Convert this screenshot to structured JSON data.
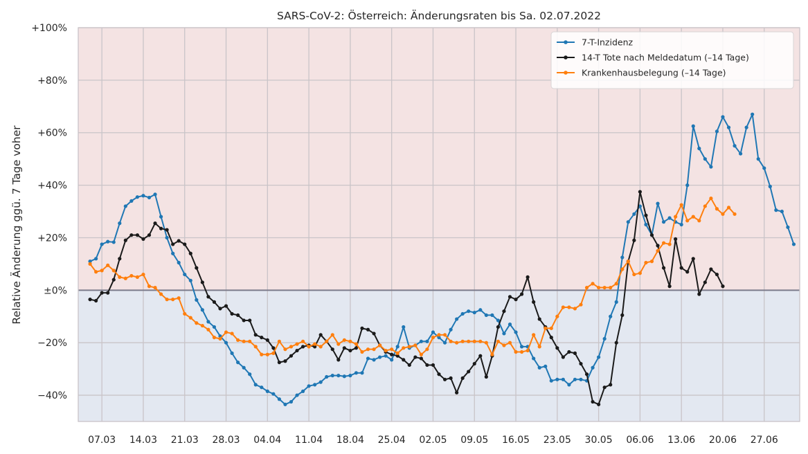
{
  "chart_data": {
    "type": "line",
    "title": "SARS-CoV-2: Österreich: Änderungsraten bis Sa. 02.07.2022",
    "xlabel": "",
    "ylabel": "Relative Änderung ggü. 7 Tage voher",
    "ylim": [
      -50,
      100
    ],
    "x_range": [
      "2022-03-03",
      "2022-07-03"
    ],
    "x_tick_labels": [
      "07.03",
      "14.03",
      "21.03",
      "28.03",
      "04.04",
      "11.04",
      "18.04",
      "25.04",
      "02.05",
      "09.05",
      "16.05",
      "23.05",
      "30.05",
      "06.06",
      "13.06",
      "20.06",
      "27.06"
    ],
    "y_ticks": [
      -40,
      -20,
      0,
      20,
      40,
      60,
      80,
      100
    ],
    "y_tick_labels": [
      "−40%",
      "−20%",
      "±0%",
      "+20%",
      "+40%",
      "+60%",
      "+80%",
      "+100%"
    ],
    "grid": true,
    "background_positive": "#f4e3e3",
    "background_negative": "#e3e8f1",
    "zero_line_color": "#7a7a8a",
    "legend_position": "top-right",
    "series": [
      {
        "name": "7-T-Inzidenz",
        "color": "#1f77b4",
        "start_date": "2022-03-05",
        "values": [
          11,
          12,
          17.5,
          18.5,
          18.3,
          25.5,
          32,
          34,
          35.5,
          36,
          35.3,
          36.5,
          28,
          20,
          14,
          10.5,
          6,
          3.7,
          -3.7,
          -7.5,
          -12,
          -14,
          -17.5,
          -20,
          -24,
          -27.5,
          -29.5,
          -32,
          -36,
          -37,
          -38.5,
          -39.5,
          -41.5,
          -43.5,
          -42.5,
          -40,
          -38.5,
          -36.5,
          -36,
          -35,
          -33,
          -32.5,
          -32.5,
          -32.8,
          -32.5,
          -31.5,
          -31.5,
          -26,
          -26.5,
          -25.5,
          -25,
          -26.5,
          -21.5,
          -14,
          -22,
          -21,
          -19.5,
          -19.5,
          -16,
          -18,
          -20,
          -15,
          -11,
          -9,
          -8,
          -8.5,
          -7.5,
          -9.5,
          -9.5,
          -11.5,
          -16.5,
          -13,
          -16,
          -21.5,
          -21.5,
          -26,
          -29.5,
          -29,
          -34.5,
          -34,
          -34,
          -36,
          -34,
          -34,
          -34.5,
          -29.5,
          -25.5,
          -18.5,
          -10,
          -4.5,
          12.5,
          26,
          29,
          32,
          25,
          21,
          33,
          26,
          27.5,
          26,
          25,
          40,
          62.5,
          54,
          50,
          47,
          60.5,
          66,
          62,
          55,
          52,
          62,
          67,
          50,
          46.5,
          39.5,
          30.5,
          30,
          24,
          17.5
        ]
      },
      {
        "name": "14-T Tote nach Meldedatum (–14 Tage)",
        "color": "#1a1a1a",
        "start_date": "2022-03-05",
        "values": [
          -3.5,
          -4,
          -1,
          -1,
          4,
          12,
          19,
          21,
          21,
          19.5,
          21,
          25.5,
          23.5,
          23,
          17.5,
          18.8,
          17.5,
          14,
          8.5,
          3,
          -2.5,
          -4.5,
          -7,
          -6,
          -9,
          -9.5,
          -11.5,
          -11.5,
          -17,
          -18,
          -19,
          -22,
          -27.5,
          -27,
          -25,
          -23,
          -21.5,
          -21,
          -21.5,
          -17,
          -19.5,
          -22.5,
          -26.5,
          -22,
          -23,
          -22,
          -14.5,
          -15,
          -16.5,
          -21,
          -23.5,
          -24.5,
          -25,
          -26.5,
          -28.5,
          -25.5,
          -26,
          -28.5,
          -28.5,
          -32,
          -34,
          -33.5,
          -39,
          -33.5,
          -31,
          -28,
          -25,
          -33,
          -25,
          -14,
          -8,
          -2.5,
          -3.5,
          -1.5,
          5,
          -4.5,
          -11,
          -14,
          -18,
          -22,
          -25.5,
          -23.5,
          -24,
          -28,
          -32,
          -42.5,
          -43.5,
          -37,
          -36,
          -20,
          -9.5,
          11,
          19,
          37.5,
          28.5,
          21,
          17,
          8.5,
          1.5,
          19.5,
          8.5,
          7,
          12,
          -1.5,
          3,
          8,
          6,
          1.5
        ]
      },
      {
        "name": "Krankenhausbelegung (–14 Tage)",
        "color": "#ff7f0e",
        "start_date": "2022-03-05",
        "values": [
          10,
          7,
          7.5,
          9.5,
          7.5,
          5,
          4.5,
          5.5,
          5,
          6,
          1.5,
          1,
          -1.5,
          -3.5,
          -3.5,
          -3,
          -9,
          -10.5,
          -12.5,
          -13.5,
          -15,
          -18,
          -18.5,
          -16,
          -16.5,
          -19,
          -19.5,
          -19.5,
          -21.5,
          -24.5,
          -24.5,
          -24,
          -19.5,
          -22.5,
          -21.5,
          -20.5,
          -19.5,
          -21.5,
          -20.5,
          -21.5,
          -19.5,
          -17,
          -20.5,
          -19,
          -19.5,
          -20.5,
          -23.5,
          -22.5,
          -22.5,
          -21,
          -23,
          -22.5,
          -24,
          -22,
          -21.5,
          -21,
          -24.5,
          -22.5,
          -18,
          -17,
          -17,
          -19.5,
          -20,
          -19.5,
          -19.5,
          -19.5,
          -19.5,
          -20,
          -24.5,
          -19.5,
          -21,
          -20,
          -23.5,
          -23.5,
          -23,
          -17,
          -21.5,
          -14.5,
          -14.5,
          -10,
          -6.5,
          -6.5,
          -7,
          -5.5,
          1,
          2.5,
          1,
          1,
          1,
          2.5,
          8,
          11,
          6,
          6.5,
          10.5,
          11,
          15,
          18,
          17.5,
          28,
          32.5,
          26.5,
          28,
          26.5,
          32,
          35,
          31,
          29,
          31.5,
          29
        ]
      }
    ]
  }
}
